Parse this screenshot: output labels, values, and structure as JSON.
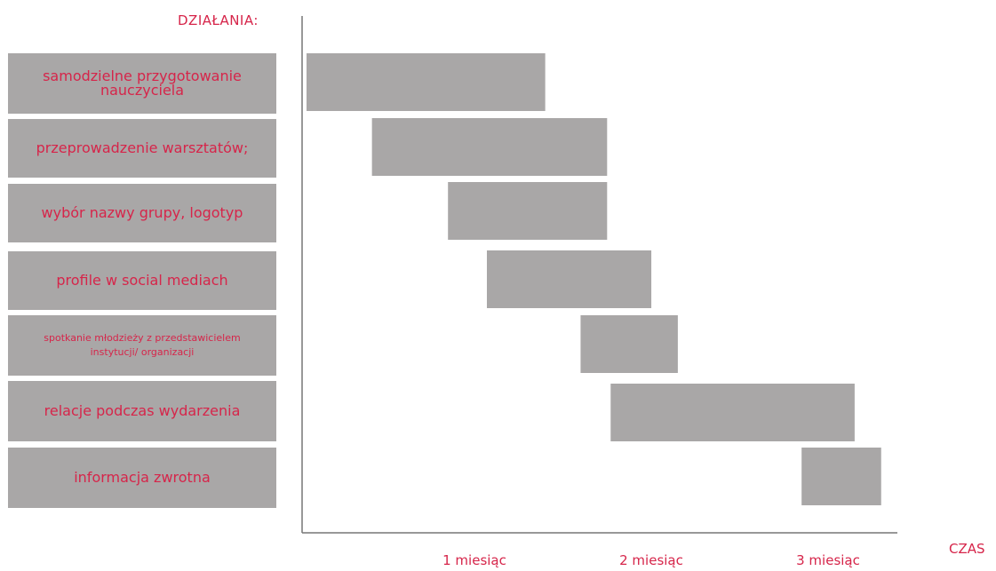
{
  "chart_data": {
    "type": "gantt",
    "title": "DZIAŁANIA:",
    "xlabel": "CZAS",
    "x_unit": "miesiąc",
    "xlim": [
      0,
      3.2
    ],
    "ticks": [
      {
        "value": 1,
        "label": "1 miesiąc"
      },
      {
        "value": 2,
        "label": "2 miesiąc"
      },
      {
        "value": 3,
        "label": "3 miesiąc"
      }
    ],
    "bar_color": "#a9a7a7",
    "text_color": "#d6254a",
    "tasks": [
      {
        "label": "samodzielne przygotowanie\nnauczyciela",
        "start": 0.0,
        "end": 1.35
      },
      {
        "label": "przeprowadzenie  warsztatów;",
        "start": 0.37,
        "end": 1.7
      },
      {
        "label": "wybór nazwy grupy, logotyp",
        "start": 0.8,
        "end": 1.7
      },
      {
        "label": "profile w social mediach",
        "start": 1.02,
        "end": 1.95
      },
      {
        "label": "spotkanie młodzieży z przedstawicielem\ninstytucji/ organizacji",
        "start": 1.55,
        "end": 2.1
      },
      {
        "label": "relacje podczas wydarzenia",
        "start": 1.72,
        "end": 3.1
      },
      {
        "label": "informacja zwrotna",
        "start": 2.8,
        "end": 3.25
      }
    ]
  }
}
